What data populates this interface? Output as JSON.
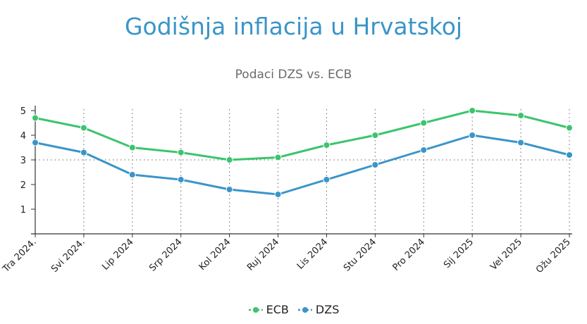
{
  "chart_data": {
    "type": "line",
    "title": "Godišnja inflacija u Hrvatskoj",
    "subtitle": "Podaci DZS vs. ECB",
    "categories": [
      "Tra 2024.",
      "Svi 2024.",
      "Lip 2024",
      "Srp 2024",
      "Kol 2024",
      "Ruj 2024",
      "Lis 2024",
      "Stu 2024",
      "Pro 2024",
      "Sij 2025",
      "Vel 2025",
      "Ožu 2025"
    ],
    "series": [
      {
        "name": "ECB",
        "color": "#3cc46e",
        "values": [
          4.7,
          4.3,
          3.5,
          3.3,
          3.0,
          3.1,
          3.6,
          4.0,
          4.5,
          5.0,
          4.8,
          4.3
        ]
      },
      {
        "name": "DZS",
        "color": "#3a95c8",
        "values": [
          3.7,
          3.3,
          2.4,
          2.2,
          1.8,
          1.6,
          2.2,
          2.8,
          3.4,
          4.0,
          3.7,
          3.2
        ]
      }
    ],
    "yticks": [
      1,
      2,
      3,
      4,
      5
    ],
    "ylim": [
      0,
      5.2
    ],
    "grid": "dotted",
    "legend": "bottom-center",
    "title_color": "#3a95c8"
  }
}
